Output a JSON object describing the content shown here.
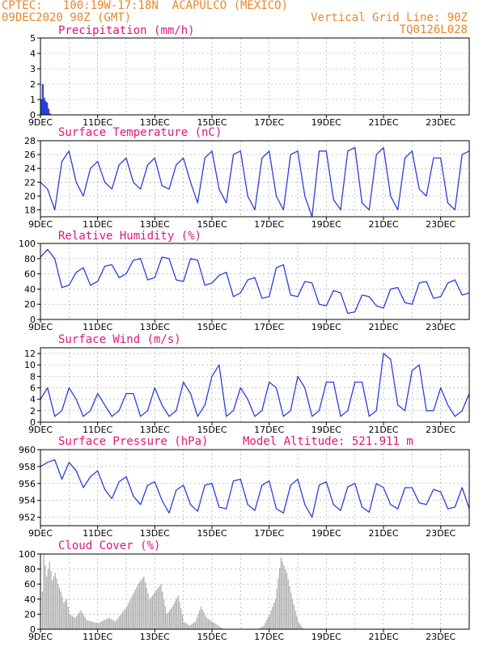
{
  "header": {
    "line1_left": "CPTEC:   100:19W-17:18N  ACAPULCO (MEXICO)",
    "line2_left": "09DEC2020 90Z (GMT)",
    "line2_right": "Vertical Grid Line: 90Z",
    "line3_right": "TQ0126L028"
  },
  "colors": {
    "header": "#e8862a",
    "title": "#e0157a",
    "line": "#2a3fd8",
    "bar": "#2a3fd8",
    "cloud": "#a8a8a8",
    "grid": "#9aa0a8"
  },
  "x_labels": [
    "9DEC",
    "11DEC",
    "13DEC",
    "15DEC",
    "17DEC",
    "19DEC",
    "21DEC",
    "23DEC"
  ],
  "chart_data": [
    {
      "type": "bar",
      "title": "Precipitation (mm/h)",
      "ylim": [
        0,
        5
      ],
      "yticks": [
        0,
        1,
        2,
        3,
        4,
        5
      ],
      "x": [
        9.0,
        9.05,
        9.1,
        9.15,
        9.2,
        9.25,
        9.3
      ],
      "values": [
        1.0,
        2.0,
        1.1,
        0.9,
        0.8,
        0.4,
        0.1
      ]
    },
    {
      "type": "line",
      "title": "Surface Temperature (nC)",
      "ylim": [
        17,
        28
      ],
      "yticks": [
        18,
        20,
        22,
        24,
        26,
        28
      ],
      "x": [
        9.0,
        9.25,
        9.5,
        9.75,
        10.0,
        10.25,
        10.5,
        10.75,
        11.0,
        11.25,
        11.5,
        11.75,
        12.0,
        12.25,
        12.5,
        12.75,
        13.0,
        13.25,
        13.5,
        13.75,
        14.0,
        14.25,
        14.5,
        14.75,
        15.0,
        15.25,
        15.5,
        15.75,
        16.0,
        16.25,
        16.5,
        16.75,
        17.0,
        17.25,
        17.5,
        17.75,
        18.0,
        18.25,
        18.5,
        18.75,
        19.0,
        19.25,
        19.5,
        19.75,
        20.0,
        20.25,
        20.5,
        20.75,
        21.0,
        21.25,
        21.5,
        21.75,
        22.0,
        22.25,
        22.5,
        22.75,
        23.0,
        23.25,
        23.5,
        23.75,
        24.0
      ],
      "values": [
        22,
        21,
        18,
        25,
        26.5,
        22,
        20,
        24,
        25,
        22,
        21,
        24.5,
        25.5,
        22,
        21,
        24.5,
        25.5,
        21.5,
        21,
        24.5,
        25.5,
        22,
        19,
        25.5,
        26.5,
        21,
        19,
        26,
        26.5,
        20,
        18,
        25.5,
        26.5,
        20,
        18,
        26,
        26.5,
        20,
        17,
        26.5,
        26.5,
        19.5,
        18,
        26.5,
        27,
        19,
        18,
        26,
        27,
        20,
        18,
        25.5,
        26.5,
        21,
        20,
        25.5,
        25.5,
        19,
        18,
        26,
        26.5
      ]
    },
    {
      "type": "line",
      "title": "Relative Humidity (%)",
      "ylim": [
        0,
        100
      ],
      "yticks": [
        0,
        20,
        40,
        60,
        80,
        100
      ],
      "x": [
        9.0,
        9.25,
        9.5,
        9.75,
        10.0,
        10.25,
        10.5,
        10.75,
        11.0,
        11.25,
        11.5,
        11.75,
        12.0,
        12.25,
        12.5,
        12.75,
        13.0,
        13.25,
        13.5,
        13.75,
        14.0,
        14.25,
        14.5,
        14.75,
        15.0,
        15.25,
        15.5,
        15.75,
        16.0,
        16.25,
        16.5,
        16.75,
        17.0,
        17.25,
        17.5,
        17.75,
        18.0,
        18.25,
        18.5,
        18.75,
        19.0,
        19.25,
        19.5,
        19.75,
        20.0,
        20.25,
        20.5,
        20.75,
        21.0,
        21.25,
        21.5,
        21.75,
        22.0,
        22.25,
        22.5,
        22.75,
        23.0,
        23.25,
        23.5,
        23.75,
        24.0
      ],
      "values": [
        82,
        92,
        80,
        42,
        45,
        62,
        68,
        45,
        50,
        70,
        72,
        55,
        60,
        78,
        80,
        52,
        55,
        82,
        80,
        52,
        50,
        80,
        78,
        45,
        48,
        58,
        62,
        30,
        35,
        52,
        55,
        28,
        30,
        68,
        72,
        32,
        30,
        50,
        48,
        20,
        18,
        38,
        35,
        8,
        10,
        32,
        30,
        18,
        15,
        40,
        42,
        22,
        20,
        48,
        50,
        28,
        30,
        48,
        52,
        32,
        35
      ]
    },
    {
      "type": "line",
      "title": "Surface Wind (m/s)",
      "ylim": [
        0,
        13
      ],
      "yticks": [
        0,
        2,
        4,
        6,
        8,
        10,
        12
      ],
      "x": [
        9.0,
        9.25,
        9.5,
        9.75,
        10.0,
        10.25,
        10.5,
        10.75,
        11.0,
        11.25,
        11.5,
        11.75,
        12.0,
        12.25,
        12.5,
        12.75,
        13.0,
        13.25,
        13.5,
        13.75,
        14.0,
        14.25,
        14.5,
        14.75,
        15.0,
        15.25,
        15.5,
        15.75,
        16.0,
        16.25,
        16.5,
        16.75,
        17.0,
        17.25,
        17.5,
        17.75,
        18.0,
        18.25,
        18.5,
        18.75,
        19.0,
        19.25,
        19.5,
        19.75,
        20.0,
        20.25,
        20.5,
        20.75,
        21.0,
        21.25,
        21.5,
        21.75,
        22.0,
        22.25,
        22.5,
        22.75,
        23.0,
        23.25,
        23.5,
        23.75,
        24.0
      ],
      "values": [
        4,
        6,
        1,
        2,
        6,
        4,
        1,
        2,
        5,
        3,
        1,
        2,
        5,
        5,
        1,
        2,
        6,
        3,
        1,
        2,
        7,
        5,
        1,
        3,
        8,
        10,
        1,
        2,
        6,
        4,
        1,
        2,
        7,
        6,
        1,
        2,
        8,
        6,
        1,
        2,
        7,
        7,
        1,
        2,
        7,
        7,
        1,
        2,
        12,
        11,
        3,
        2,
        9,
        10,
        2,
        2,
        6,
        3,
        1,
        2,
        5
      ]
    },
    {
      "type": "line",
      "title": "Surface Pressure (hPa)",
      "annotation": "Model Altitude: 521.911 m",
      "ylim": [
        951,
        960
      ],
      "yticks": [
        952,
        954,
        956,
        958,
        960
      ],
      "x": [
        9.0,
        9.25,
        9.5,
        9.75,
        10.0,
        10.25,
        10.5,
        10.75,
        11.0,
        11.25,
        11.5,
        11.75,
        12.0,
        12.25,
        12.5,
        12.75,
        13.0,
        13.25,
        13.5,
        13.75,
        14.0,
        14.25,
        14.5,
        14.75,
        15.0,
        15.25,
        15.5,
        15.75,
        16.0,
        16.25,
        16.5,
        16.75,
        17.0,
        17.25,
        17.5,
        17.75,
        18.0,
        18.25,
        18.5,
        18.75,
        19.0,
        19.25,
        19.5,
        19.75,
        20.0,
        20.25,
        20.5,
        20.75,
        21.0,
        21.25,
        21.5,
        21.75,
        22.0,
        22.25,
        22.5,
        22.75,
        23.0,
        23.25,
        23.5,
        23.75,
        24.0
      ],
      "values": [
        958,
        958.5,
        958.8,
        956.5,
        958.5,
        957.5,
        955.5,
        956.8,
        957.5,
        955.3,
        954.2,
        956.2,
        956.8,
        954.5,
        953.5,
        955.8,
        956.2,
        954,
        952.5,
        955.2,
        955.8,
        953.5,
        952.7,
        955.8,
        956,
        953.2,
        953,
        956.3,
        956.5,
        953.5,
        952.8,
        955.8,
        956.3,
        953,
        952.5,
        955.8,
        956.5,
        953.5,
        952,
        955.8,
        956.2,
        953.5,
        952.8,
        955.6,
        956,
        953.2,
        952.6,
        956,
        955.5,
        953.5,
        953,
        955.5,
        955.5,
        953.7,
        953.5,
        955.3,
        955,
        953,
        953.2,
        955.5,
        953
      ]
    },
    {
      "type": "area",
      "title": "Cloud Cover (%)",
      "ylim": [
        0,
        100
      ],
      "yticks": [
        0,
        20,
        40,
        60,
        80,
        100
      ],
      "x": [
        9.0,
        9.1,
        9.2,
        9.3,
        9.4,
        9.5,
        9.6,
        9.7,
        9.8,
        9.9,
        10.0,
        10.2,
        10.4,
        10.6,
        10.8,
        11.0,
        11.2,
        11.4,
        11.6,
        11.8,
        12.0,
        12.2,
        12.4,
        12.6,
        12.8,
        13.0,
        13.2,
        13.4,
        13.6,
        13.8,
        14.0,
        14.2,
        14.4,
        14.6,
        14.8,
        15.0,
        15.2,
        15.4,
        15.6,
        15.8,
        16.0,
        16.2,
        16.4,
        16.6,
        16.8,
        17.0,
        17.2,
        17.4,
        17.6,
        17.8,
        18.0,
        18.2
      ],
      "values": [
        0,
        100,
        70,
        90,
        65,
        75,
        60,
        50,
        35,
        40,
        20,
        15,
        25,
        12,
        10,
        8,
        12,
        15,
        10,
        20,
        30,
        45,
        60,
        70,
        40,
        50,
        60,
        20,
        30,
        45,
        10,
        5,
        10,
        30,
        15,
        10,
        5,
        0,
        0,
        0,
        0,
        0,
        0,
        0,
        5,
        20,
        40,
        95,
        75,
        40,
        10,
        0
      ]
    }
  ]
}
